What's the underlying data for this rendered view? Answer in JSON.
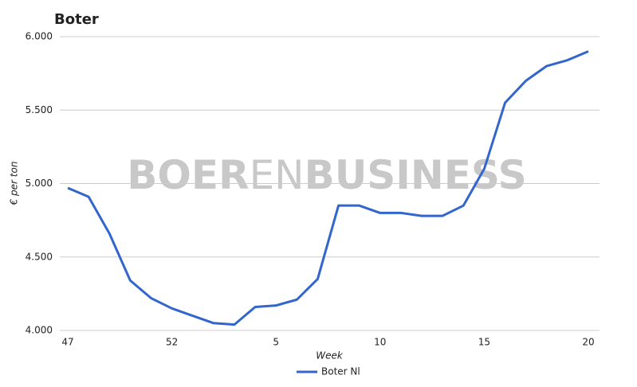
{
  "chart_data": {
    "type": "line",
    "title": "Boter",
    "x_label": "Week",
    "y_label": "€ per ton",
    "watermark": [
      "BOER",
      "EN",
      "BUSINESS"
    ],
    "categories": [
      "47",
      null,
      null,
      null,
      null,
      "52",
      null,
      null,
      null,
      null,
      "5",
      null,
      null,
      null,
      null,
      "10",
      null,
      null,
      null,
      null,
      "15",
      null,
      null,
      null,
      null,
      "20"
    ],
    "series": [
      {
        "name": "Boter Nl",
        "color": "#3366cc",
        "values": [
          4970,
          4910,
          4660,
          4340,
          4220,
          4150,
          4100,
          4050,
          4040,
          4160,
          4170,
          4210,
          4350,
          4850,
          4850,
          4800,
          4800,
          4780,
          4780,
          4850,
          5100,
          5550,
          5700,
          5800,
          5840,
          5900
        ]
      }
    ],
    "ylim": [
      4000,
      6000
    ],
    "yticks": [
      {
        "value": 4000,
        "label": "4.000"
      },
      {
        "value": 4500,
        "label": "4.500"
      },
      {
        "value": 5000,
        "label": "5.000"
      },
      {
        "value": 5500,
        "label": "5.500"
      },
      {
        "value": 6000,
        "label": "6.000"
      }
    ],
    "grid": true,
    "legend": "bottom"
  }
}
